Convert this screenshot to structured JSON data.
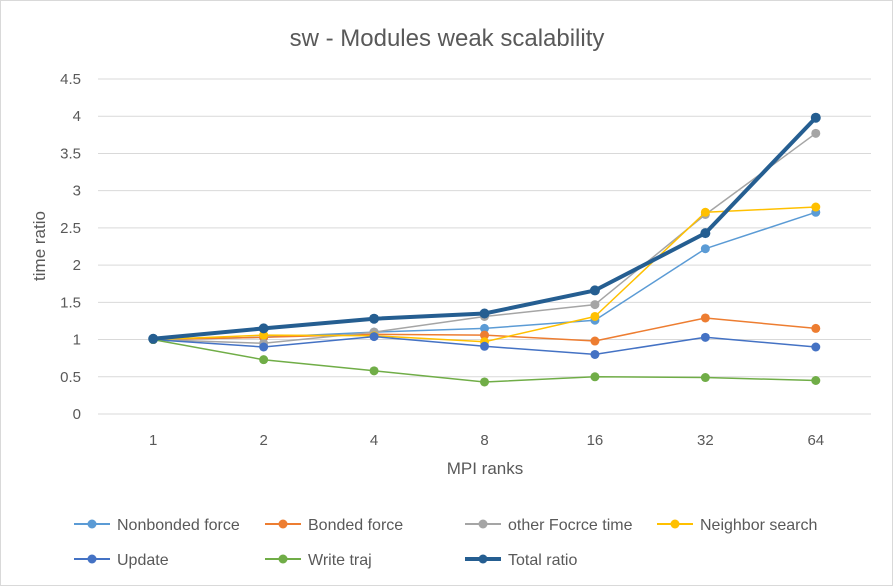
{
  "chart_data": {
    "type": "line",
    "title": "sw - Modules weak scalability",
    "xlabel": "MPI ranks",
    "ylabel": "time ratio",
    "categories": [
      "1",
      "2",
      "4",
      "8",
      "16",
      "32",
      "64"
    ],
    "ylim": [
      0,
      4.5
    ],
    "yticks": [
      "0",
      "0.5",
      "1",
      "1.5",
      "2",
      "2.5",
      "3",
      "3.5",
      "4",
      "4.5"
    ],
    "grid": true,
    "legend_position": "bottom",
    "series": [
      {
        "name": "Nonbonded force",
        "color": "#5B9BD5",
        "width": 1.5,
        "values": [
          1.0,
          1.03,
          1.1,
          1.15,
          1.26,
          2.22,
          2.71
        ]
      },
      {
        "name": "Bonded force",
        "color": "#ED7D31",
        "width": 1.5,
        "values": [
          1.0,
          1.03,
          1.07,
          1.06,
          0.98,
          1.29,
          1.15
        ]
      },
      {
        "name": "other Focrce time",
        "color": "#A5A5A5",
        "width": 1.5,
        "values": [
          1.0,
          0.95,
          1.1,
          1.31,
          1.47,
          2.68,
          3.77
        ]
      },
      {
        "name": "Neighbor search",
        "color": "#FFC000",
        "width": 1.5,
        "values": [
          1.0,
          1.06,
          1.05,
          0.97,
          1.31,
          2.71,
          2.78
        ]
      },
      {
        "name": "Update",
        "color": "#4472C4",
        "width": 1.5,
        "values": [
          1.0,
          0.9,
          1.04,
          0.91,
          0.8,
          1.03,
          0.9
        ]
      },
      {
        "name": "Write traj",
        "color": "#70AD47",
        "width": 1.5,
        "values": [
          1.0,
          0.73,
          0.58,
          0.43,
          0.5,
          0.49,
          0.45
        ]
      },
      {
        "name": "Total ratio",
        "color": "#255E91",
        "width": 4,
        "values": [
          1.01,
          1.15,
          1.28,
          1.35,
          1.66,
          2.43,
          3.98
        ]
      }
    ]
  }
}
